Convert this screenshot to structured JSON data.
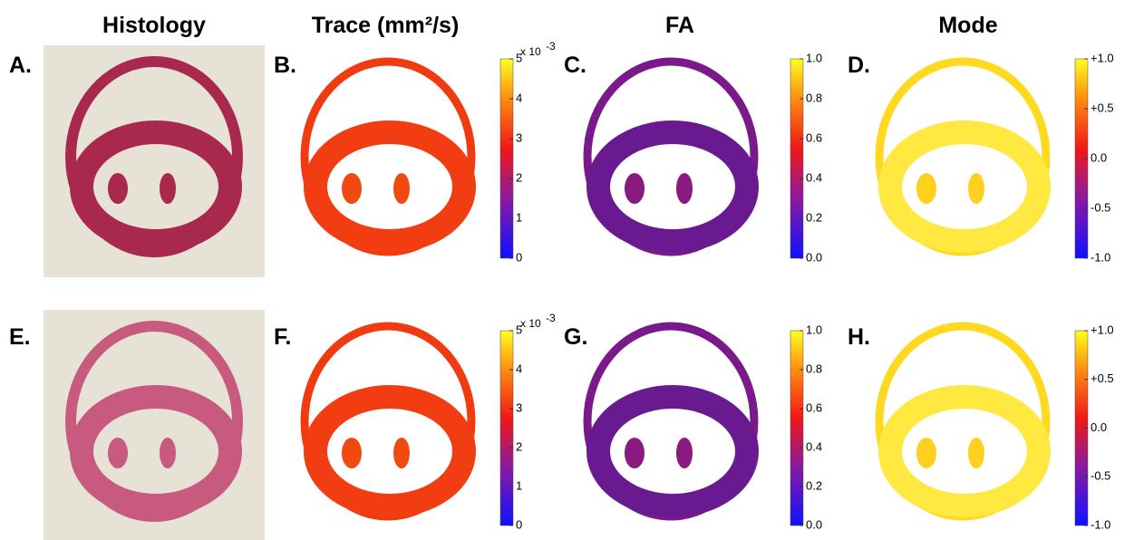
{
  "columns": [
    "Histology",
    "Trace (mm²/s)",
    "FA",
    "Mode"
  ],
  "rows": [
    {
      "labels": [
        "A.",
        "B.",
        "C.",
        "D."
      ],
      "colorbars": [
        {
          "multiplier": "x 10",
          "exponent": "-3",
          "lim": [
            0,
            5
          ],
          "ticks": [
            0,
            1,
            2,
            3,
            4,
            5
          ]
        },
        {
          "lim": [
            0,
            1
          ],
          "ticks": [
            {
              "value": 0,
              "label": "0.0"
            },
            {
              "value": 0.2,
              "label": "0.2"
            },
            {
              "value": 0.4,
              "label": "0.4"
            },
            {
              "value": 0.6,
              "label": "0.6"
            },
            {
              "value": 0.8,
              "label": "0.8"
            },
            {
              "value": 1,
              "label": "1.0"
            }
          ]
        },
        {
          "lim": [
            -1,
            1
          ],
          "ticks": [
            {
              "value": -1,
              "label": "-1.0"
            },
            {
              "value": -0.5,
              "label": "-0.5"
            },
            {
              "value": 0,
              "label": "0.0"
            },
            {
              "value": 0.5,
              "label": "+0.5"
            },
            {
              "value": 1,
              "label": "+1.0"
            }
          ]
        }
      ]
    },
    {
      "labels": [
        "E.",
        "F.",
        "G.",
        "H."
      ],
      "colorbars": [
        {
          "multiplier": "x 10",
          "exponent": "-3",
          "lim": [
            0,
            5
          ],
          "ticks": [
            0,
            1,
            2,
            3,
            4,
            5
          ]
        },
        {
          "lim": [
            0,
            1
          ],
          "ticks": [
            {
              "value": 0,
              "label": "0.0"
            },
            {
              "value": 0.2,
              "label": "0.2"
            },
            {
              "value": 0.4,
              "label": "0.4"
            },
            {
              "value": 0.6,
              "label": "0.6"
            },
            {
              "value": 0.8,
              "label": "0.8"
            },
            {
              "value": 1,
              "label": "1.0"
            }
          ]
        },
        {
          "lim": [
            -1,
            1
          ],
          "ticks": [
            {
              "value": -1,
              "label": "-1.0"
            },
            {
              "value": -0.5,
              "label": "-0.5"
            },
            {
              "value": 0,
              "label": "0.0"
            },
            {
              "value": 0.5,
              "label": "+0.5"
            },
            {
              "value": 1,
              "label": "+1.0"
            }
          ]
        }
      ]
    }
  ]
}
